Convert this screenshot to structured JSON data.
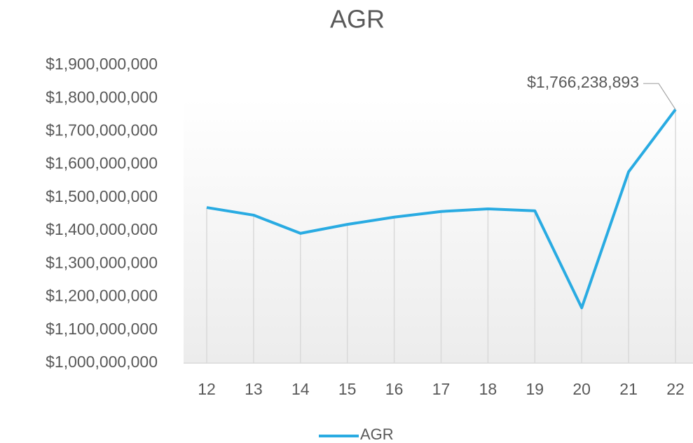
{
  "chart_data": {
    "type": "line",
    "title": "AGR",
    "categories": [
      "12",
      "13",
      "14",
      "15",
      "16",
      "17",
      "18",
      "19",
      "20",
      "21",
      "22"
    ],
    "series": [
      {
        "name": "AGR",
        "color": "#29abe2",
        "values": [
          1470000000,
          1447000000,
          1392000000,
          1419000000,
          1441000000,
          1458000000,
          1466000000,
          1460000000,
          1167000000,
          1578000000,
          1766238893
        ],
        "value_labels": [
          null,
          null,
          null,
          null,
          null,
          null,
          null,
          null,
          null,
          null,
          "$1,766,238,893"
        ]
      }
    ],
    "ylim": [
      1000000000,
      1900000000
    ],
    "yticks": [
      {
        "value": 1000000000,
        "label": "$1,000,000,000"
      },
      {
        "value": 1100000000,
        "label": "$1,100,000,000"
      },
      {
        "value": 1200000000,
        "label": "$1,200,000,000"
      },
      {
        "value": 1300000000,
        "label": "$1,300,000,000"
      },
      {
        "value": 1400000000,
        "label": "$1,400,000,000"
      },
      {
        "value": 1500000000,
        "label": "$1,500,000,000"
      },
      {
        "value": 1600000000,
        "label": "$1,600,000,000"
      },
      {
        "value": 1700000000,
        "label": "$1,700,000,000"
      },
      {
        "value": 1800000000,
        "label": "$1,800,000,000"
      },
      {
        "value": 1900000000,
        "label": "$1,900,000,000"
      }
    ],
    "legend": "bottom",
    "grid": false
  }
}
